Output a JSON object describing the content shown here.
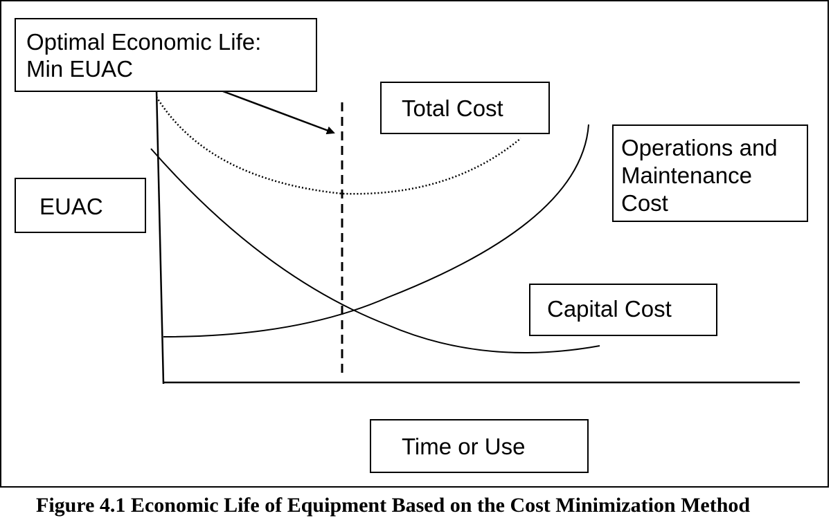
{
  "diagram": {
    "optimal_label": [
      "Optimal Economic Life:",
      "Min EUAC"
    ],
    "total_cost_label": "Total Cost",
    "om_cost_label": [
      "Operations and",
      "Maintenance",
      "Cost"
    ],
    "y_axis_label": "EUAC",
    "capital_cost_label": "Capital Cost",
    "x_axis_label": "Time or Use"
  },
  "caption": "Figure 4.1 Economic Life of Equipment Based on the Cost Minimization Method"
}
